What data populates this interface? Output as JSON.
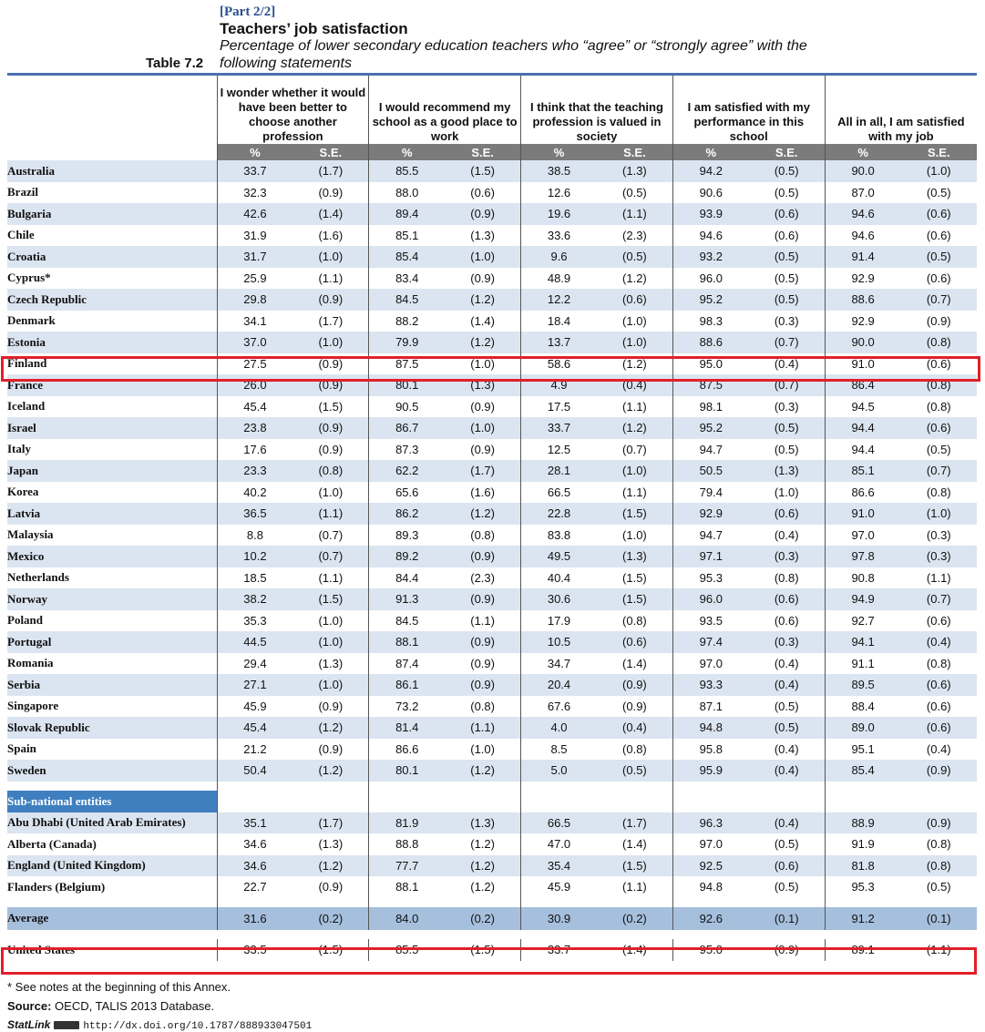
{
  "header": {
    "part": "[Part 2/2]",
    "title": "Teachers’ job satisfaction",
    "subtitle": "Percentage of lower secondary education teachers who “agree” or “strongly agree” with the following statements",
    "table_label": "Table 7.2"
  },
  "columns": [
    {
      "label": "I wonder whether it would have been better to choose another profession"
    },
    {
      "label": "I would recommend my school as a good place to work"
    },
    {
      "label": "I think that the teaching profession is valued in society"
    },
    {
      "label": "I am satisfied with my performance in this school"
    },
    {
      "label": "All in all, I am satisfied with my job"
    }
  ],
  "sub_headers": {
    "pct": "%",
    "se": "S.E."
  },
  "rows": [
    {
      "name": "Australia",
      "v": [
        "33.7",
        "(1.7)",
        "85.5",
        "(1.5)",
        "38.5",
        "(1.3)",
        "94.2",
        "(0.5)",
        "90.0",
        "(1.0)"
      ]
    },
    {
      "name": "Brazil",
      "v": [
        "32.3",
        "(0.9)",
        "88.0",
        "(0.6)",
        "12.6",
        "(0.5)",
        "90.6",
        "(0.5)",
        "87.0",
        "(0.5)"
      ]
    },
    {
      "name": "Bulgaria",
      "v": [
        "42.6",
        "(1.4)",
        "89.4",
        "(0.9)",
        "19.6",
        "(1.1)",
        "93.9",
        "(0.6)",
        "94.6",
        "(0.6)"
      ]
    },
    {
      "name": "Chile",
      "v": [
        "31.9",
        "(1.6)",
        "85.1",
        "(1.3)",
        "33.6",
        "(2.3)",
        "94.6",
        "(0.6)",
        "94.6",
        "(0.6)"
      ]
    },
    {
      "name": "Croatia",
      "v": [
        "31.7",
        "(1.0)",
        "85.4",
        "(1.0)",
        "9.6",
        "(0.5)",
        "93.2",
        "(0.5)",
        "91.4",
        "(0.5)"
      ]
    },
    {
      "name": "Cyprus*",
      "v": [
        "25.9",
        "(1.1)",
        "83.4",
        "(0.9)",
        "48.9",
        "(1.2)",
        "96.0",
        "(0.5)",
        "92.9",
        "(0.6)"
      ]
    },
    {
      "name": "Czech Republic",
      "v": [
        "29.8",
        "(0.9)",
        "84.5",
        "(1.2)",
        "12.2",
        "(0.6)",
        "95.2",
        "(0.5)",
        "88.6",
        "(0.7)"
      ]
    },
    {
      "name": "Denmark",
      "v": [
        "34.1",
        "(1.7)",
        "88.2",
        "(1.4)",
        "18.4",
        "(1.0)",
        "98.3",
        "(0.3)",
        "92.9",
        "(0.9)"
      ]
    },
    {
      "name": "Estonia",
      "v": [
        "37.0",
        "(1.0)",
        "79.9",
        "(1.2)",
        "13.7",
        "(1.0)",
        "88.6",
        "(0.7)",
        "90.0",
        "(0.8)"
      ]
    },
    {
      "name": "Finland",
      "v": [
        "27.5",
        "(0.9)",
        "87.5",
        "(1.0)",
        "58.6",
        "(1.2)",
        "95.0",
        "(0.4)",
        "91.0",
        "(0.6)"
      ]
    },
    {
      "name": "France",
      "v": [
        "26.0",
        "(0.9)",
        "80.1",
        "(1.3)",
        "4.9",
        "(0.4)",
        "87.5",
        "(0.7)",
        "86.4",
        "(0.8)"
      ]
    },
    {
      "name": "Iceland",
      "v": [
        "45.4",
        "(1.5)",
        "90.5",
        "(0.9)",
        "17.5",
        "(1.1)",
        "98.1",
        "(0.3)",
        "94.5",
        "(0.8)"
      ]
    },
    {
      "name": "Israel",
      "v": [
        "23.8",
        "(0.9)",
        "86.7",
        "(1.0)",
        "33.7",
        "(1.2)",
        "95.2",
        "(0.5)",
        "94.4",
        "(0.6)"
      ]
    },
    {
      "name": "Italy",
      "v": [
        "17.6",
        "(0.9)",
        "87.3",
        "(0.9)",
        "12.5",
        "(0.7)",
        "94.7",
        "(0.5)",
        "94.4",
        "(0.5)"
      ]
    },
    {
      "name": "Japan",
      "v": [
        "23.3",
        "(0.8)",
        "62.2",
        "(1.7)",
        "28.1",
        "(1.0)",
        "50.5",
        "(1.3)",
        "85.1",
        "(0.7)"
      ]
    },
    {
      "name": "Korea",
      "v": [
        "40.2",
        "(1.0)",
        "65.6",
        "(1.6)",
        "66.5",
        "(1.1)",
        "79.4",
        "(1.0)",
        "86.6",
        "(0.8)"
      ]
    },
    {
      "name": "Latvia",
      "v": [
        "36.5",
        "(1.1)",
        "86.2",
        "(1.2)",
        "22.8",
        "(1.5)",
        "92.9",
        "(0.6)",
        "91.0",
        "(1.0)"
      ]
    },
    {
      "name": "Malaysia",
      "v": [
        "8.8",
        "(0.7)",
        "89.3",
        "(0.8)",
        "83.8",
        "(1.0)",
        "94.7",
        "(0.4)",
        "97.0",
        "(0.3)"
      ]
    },
    {
      "name": "Mexico",
      "v": [
        "10.2",
        "(0.7)",
        "89.2",
        "(0.9)",
        "49.5",
        "(1.3)",
        "97.1",
        "(0.3)",
        "97.8",
        "(0.3)"
      ]
    },
    {
      "name": "Netherlands",
      "v": [
        "18.5",
        "(1.1)",
        "84.4",
        "(2.3)",
        "40.4",
        "(1.5)",
        "95.3",
        "(0.8)",
        "90.8",
        "(1.1)"
      ]
    },
    {
      "name": "Norway",
      "v": [
        "38.2",
        "(1.5)",
        "91.3",
        "(0.9)",
        "30.6",
        "(1.5)",
        "96.0",
        "(0.6)",
        "94.9",
        "(0.7)"
      ]
    },
    {
      "name": "Poland",
      "v": [
        "35.3",
        "(1.0)",
        "84.5",
        "(1.1)",
        "17.9",
        "(0.8)",
        "93.5",
        "(0.6)",
        "92.7",
        "(0.6)"
      ]
    },
    {
      "name": "Portugal",
      "v": [
        "44.5",
        "(1.0)",
        "88.1",
        "(0.9)",
        "10.5",
        "(0.6)",
        "97.4",
        "(0.3)",
        "94.1",
        "(0.4)"
      ]
    },
    {
      "name": "Romania",
      "v": [
        "29.4",
        "(1.3)",
        "87.4",
        "(0.9)",
        "34.7",
        "(1.4)",
        "97.0",
        "(0.4)",
        "91.1",
        "(0.8)"
      ]
    },
    {
      "name": "Serbia",
      "v": [
        "27.1",
        "(1.0)",
        "86.1",
        "(0.9)",
        "20.4",
        "(0.9)",
        "93.3",
        "(0.4)",
        "89.5",
        "(0.6)"
      ]
    },
    {
      "name": "Singapore",
      "v": [
        "45.9",
        "(0.9)",
        "73.2",
        "(0.8)",
        "67.6",
        "(0.9)",
        "87.1",
        "(0.5)",
        "88.4",
        "(0.6)"
      ]
    },
    {
      "name": "Slovak Republic",
      "v": [
        "45.4",
        "(1.2)",
        "81.4",
        "(1.1)",
        "4.0",
        "(0.4)",
        "94.8",
        "(0.5)",
        "89.0",
        "(0.6)"
      ]
    },
    {
      "name": "Spain",
      "v": [
        "21.2",
        "(0.9)",
        "86.6",
        "(1.0)",
        "8.5",
        "(0.8)",
        "95.8",
        "(0.4)",
        "95.1",
        "(0.4)"
      ]
    },
    {
      "name": "Sweden",
      "v": [
        "50.4",
        "(1.2)",
        "80.1",
        "(1.2)",
        "5.0",
        "(0.5)",
        "95.9",
        "(0.4)",
        "85.4",
        "(0.9)"
      ]
    }
  ],
  "subnational_label": "Sub-national entities",
  "subnational_rows": [
    {
      "name": "Abu Dhabi (United Arab Emirates)",
      "v": [
        "35.1",
        "(1.7)",
        "81.9",
        "(1.3)",
        "66.5",
        "(1.7)",
        "96.3",
        "(0.4)",
        "88.9",
        "(0.9)"
      ]
    },
    {
      "name": "Alberta (Canada)",
      "v": [
        "34.6",
        "(1.3)",
        "88.8",
        "(1.2)",
        "47.0",
        "(1.4)",
        "97.0",
        "(0.5)",
        "91.9",
        "(0.8)"
      ]
    },
    {
      "name": "England (United Kingdom)",
      "v": [
        "34.6",
        "(1.2)",
        "77.7",
        "(1.2)",
        "35.4",
        "(1.5)",
        "92.5",
        "(0.6)",
        "81.8",
        "(0.8)"
      ]
    },
    {
      "name": "Flanders (Belgium)",
      "v": [
        "22.7",
        "(0.9)",
        "88.1",
        "(1.2)",
        "45.9",
        "(1.1)",
        "94.8",
        "(0.5)",
        "95.3",
        "(0.5)"
      ]
    }
  ],
  "average": {
    "name": "Average",
    "v": [
      "31.6",
      "(0.2)",
      "84.0",
      "(0.2)",
      "30.9",
      "(0.2)",
      "92.6",
      "(0.1)",
      "91.2",
      "(0.1)"
    ]
  },
  "us": {
    "name": "United States",
    "v": [
      "33.5",
      "(1.5)",
      "85.5",
      "(1.5)",
      "33.7",
      "(1.4)",
      "95.0",
      "(0.9)",
      "89.1",
      "(1.1)"
    ]
  },
  "footer": {
    "note": "* See notes at the beginning of this Annex.",
    "source_label": "Source:",
    "source": "OECD, TALIS 2013 Database.",
    "statlink": "StatLink",
    "url": "http://dx.doi.org/10.1787/888933047501"
  },
  "colors": {
    "accent": "#3f7fc0",
    "shade": "#dbe5f1",
    "highlight": "#e0202a",
    "subheader": "#7b7b7b",
    "average": "#a6bfdd"
  }
}
